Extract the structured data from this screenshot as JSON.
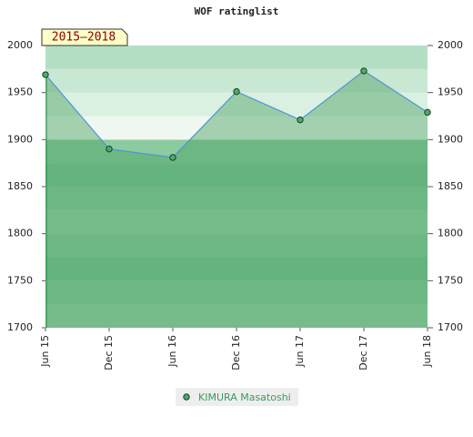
{
  "chart_data": {
    "type": "area",
    "title": "WOF ratinglist",
    "annotation": "2015–2018",
    "categories": [
      "Jun 15",
      "Dec 15",
      "Jun 16",
      "Dec 16",
      "Jun 17",
      "Dec 17",
      "Jun 18"
    ],
    "series": [
      {
        "name": "KIMURA Masatoshi",
        "color": "#4f94d4",
        "values": [
          1969,
          1890,
          1881,
          1951,
          1921,
          1973,
          1929
        ]
      }
    ],
    "ylim": [
      1700,
      2000
    ],
    "yticks": [
      1700,
      1750,
      1800,
      1850,
      1900,
      1950,
      2000
    ],
    "y2lim": [
      1700,
      2000
    ],
    "y2ticks": [
      1700,
      1750,
      1800,
      1850,
      1900,
      1950,
      2000
    ],
    "grid": true
  }
}
